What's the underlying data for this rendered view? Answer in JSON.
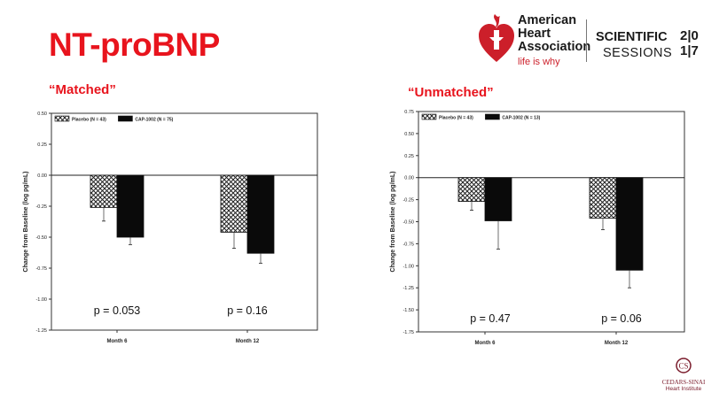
{
  "slide": {
    "title": "NT-proBNP",
    "left_heading": "“Matched”",
    "right_heading": "“Unmatched”"
  },
  "logo": {
    "aha_lines": [
      "American",
      "Heart",
      "Association"
    ],
    "aha_tagline": "life is why",
    "sessions_line1": "SCIENTIFIC",
    "sessions_line2": "SESSIONS",
    "year_top": "2|0",
    "year_bottom": "1|7",
    "institute_name": "CEDARS-SINAI",
    "institute_sub": "Heart Institute"
  },
  "chart_data": [
    {
      "type": "bar",
      "title": "",
      "ylabel": "Change from Baseline (log pg/mL)",
      "categories": [
        "Month 6",
        "Month 12"
      ],
      "ylim": [
        -1.25,
        0.5
      ],
      "yticks": [
        0.5,
        0.25,
        0.0,
        -0.25,
        -0.5,
        -0.75,
        -1.0,
        -1.25
      ],
      "ytick_labels": [
        "0.50",
        "0.25",
        "0.00",
        "-0.25",
        "-0.50",
        "-0.75",
        "-1.00",
        "-1.25"
      ],
      "series": [
        {
          "name": "Placebo (N = 43)",
          "values": [
            -0.26,
            -0.46
          ],
          "err": [
            0.11,
            0.13
          ],
          "pattern": "hatch"
        },
        {
          "name": "CAP-1002 (N = 75)",
          "values": [
            -0.5,
            -0.63
          ],
          "err": [
            0.06,
            0.08
          ],
          "pattern": "solid"
        }
      ],
      "annotations": [
        "p = 0.053",
        "p = 0.16"
      ],
      "legend": "top-left",
      "grid": false
    },
    {
      "type": "bar",
      "title": "",
      "ylabel": "Change from Baseline (log pg/mL)",
      "categories": [
        "Month 6",
        "Month 12"
      ],
      "ylim": [
        -1.75,
        0.75
      ],
      "yticks": [
        0.75,
        0.5,
        0.25,
        0.0,
        -0.25,
        -0.5,
        -0.75,
        -1.0,
        -1.25,
        -1.5,
        -1.75
      ],
      "ytick_labels": [
        "0.75",
        "0.50",
        "0.25",
        "0.00",
        "-0.25",
        "-0.50",
        "-0.75",
        "-1.00",
        "-1.25",
        "-1.50",
        "-1.75"
      ],
      "series": [
        {
          "name": "Placebo (N = 43)",
          "values": [
            -0.27,
            -0.46
          ],
          "err": [
            0.1,
            0.13
          ],
          "pattern": "hatch"
        },
        {
          "name": "CAP-1002 (N = 13)",
          "values": [
            -0.49,
            -1.05
          ],
          "err": [
            0.32,
            0.2
          ],
          "pattern": "solid"
        }
      ],
      "annotations": [
        "p = 0.47",
        "p = 0.06"
      ],
      "legend": "top-left",
      "grid": false
    }
  ],
  "colors": {
    "title_red": "#e8141d",
    "bar_dark": "#0a0a0a",
    "axis": "#333333"
  }
}
